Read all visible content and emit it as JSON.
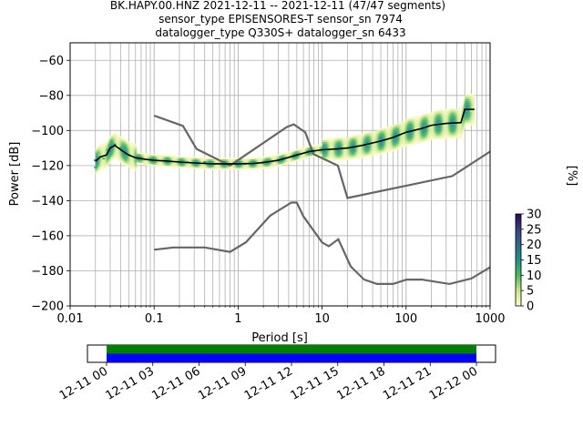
{
  "chart_data": [
    {
      "type": "heatmap",
      "title_lines": [
        "BK.HAPY.00.HNZ   2021-12-11 -- 2021-12-11  (47/47 segments)",
        "sensor_type EPISENSORES-T sensor_sn 7974",
        "datalogger_type Q330S+ datalogger_sn 6433"
      ],
      "xlabel": "Period [s]",
      "ylabel": "Power [dB]",
      "x_scale": "log",
      "xlim": [
        0.01,
        1000
      ],
      "ylim": [
        -200,
        -50
      ],
      "x_ticks": [
        {
          "v": 0.01,
          "label": "0.01"
        },
        {
          "v": 0.1,
          "label": "0.1"
        },
        {
          "v": 1,
          "label": "1"
        },
        {
          "v": 10,
          "label": "10"
        },
        {
          "v": 100,
          "label": "100"
        },
        {
          "v": 1000,
          "label": "1000"
        }
      ],
      "y_ticks": [
        {
          "v": -60,
          "label": "−60"
        },
        {
          "v": -80,
          "label": "−80"
        },
        {
          "v": -100,
          "label": "−100"
        },
        {
          "v": -120,
          "label": "−120"
        },
        {
          "v": -140,
          "label": "−140"
        },
        {
          "v": -160,
          "label": "−160"
        },
        {
          "v": -180,
          "label": "−180"
        },
        {
          "v": -200,
          "label": "−200"
        }
      ],
      "grid": true,
      "colorbar": {
        "label": "[%]",
        "min": 0,
        "max": 30,
        "ticks": [
          {
            "v": 0,
            "label": "0"
          },
          {
            "v": 5,
            "label": "5"
          },
          {
            "v": 10,
            "label": "10"
          },
          {
            "v": 15,
            "label": "15"
          },
          {
            "v": 20,
            "label": "20"
          },
          {
            "v": 25,
            "label": "25"
          },
          {
            "v": 30,
            "label": "30"
          }
        ]
      },
      "nhnm": [
        [
          0.1,
          -91.5
        ],
        [
          0.22,
          -97.4
        ],
        [
          0.32,
          -110.5
        ],
        [
          0.8,
          -120
        ],
        [
          3.8,
          -98
        ],
        [
          4.6,
          -96.5
        ],
        [
          6.3,
          -101
        ],
        [
          7.9,
          -113.5
        ],
        [
          15.4,
          -120
        ],
        [
          20,
          -138.5
        ],
        [
          354.8,
          -126
        ],
        [
          1000,
          -112
        ]
      ],
      "nlnm": [
        [
          0.1,
          -168
        ],
        [
          0.17,
          -166.7
        ],
        [
          0.4,
          -166.7
        ],
        [
          0.8,
          -169.2
        ],
        [
          1.24,
          -163.7
        ],
        [
          2.4,
          -148.6
        ],
        [
          4.3,
          -141.1
        ],
        [
          5,
          -141.1
        ],
        [
          6,
          -149
        ],
        [
          10,
          -163.8
        ],
        [
          12,
          -166
        ],
        [
          15.6,
          -162
        ],
        [
          21.9,
          -177.5
        ],
        [
          31.6,
          -185
        ],
        [
          45,
          -187.5
        ],
        [
          70,
          -187.5
        ],
        [
          101,
          -185
        ],
        [
          154,
          -185
        ],
        [
          328,
          -187.5
        ],
        [
          600,
          -184.4
        ],
        [
          1000,
          -178
        ]
      ],
      "mean": [
        [
          0.02,
          -117.5
        ],
        [
          0.023,
          -115
        ],
        [
          0.027,
          -114
        ],
        [
          0.03,
          -110
        ],
        [
          0.034,
          -108.5
        ],
        [
          0.04,
          -111
        ],
        [
          0.05,
          -114
        ],
        [
          0.06,
          -115.5
        ],
        [
          0.08,
          -116.5
        ],
        [
          0.1,
          -117
        ],
        [
          0.15,
          -117.5
        ],
        [
          0.2,
          -118
        ],
        [
          0.3,
          -118.5
        ],
        [
          0.5,
          -119
        ],
        [
          1,
          -119
        ],
        [
          1.5,
          -118.8
        ],
        [
          2,
          -118.3
        ],
        [
          3,
          -117
        ],
        [
          5,
          -114
        ],
        [
          7,
          -112
        ],
        [
          10,
          -111
        ],
        [
          15,
          -110.5
        ],
        [
          20,
          -110
        ],
        [
          30,
          -108.5
        ],
        [
          50,
          -106
        ],
        [
          70,
          -104
        ],
        [
          100,
          -101
        ],
        [
          150,
          -99
        ],
        [
          200,
          -97
        ],
        [
          300,
          -96
        ],
        [
          450,
          -95.5
        ],
        [
          500,
          -88
        ],
        [
          650,
          -88
        ]
      ],
      "histogram_cells": [
        {
          "period": 0.02,
          "db": -117,
          "pct": 20
        },
        {
          "period": 0.02,
          "db": -121,
          "pct": 12
        },
        {
          "period": 0.022,
          "db": -114,
          "pct": 8
        },
        {
          "period": 0.025,
          "db": -116,
          "pct": 10
        },
        {
          "period": 0.028,
          "db": -111,
          "pct": 12
        },
        {
          "period": 0.031,
          "db": -106,
          "pct": 10
        },
        {
          "period": 0.034,
          "db": -108,
          "pct": 18
        },
        {
          "period": 0.04,
          "db": -110,
          "pct": 14
        },
        {
          "period": 0.05,
          "db": -114,
          "pct": 12
        },
        {
          "period": 0.07,
          "db": -116,
          "pct": 10
        },
        {
          "period": 0.1,
          "db": -117,
          "pct": 9
        },
        {
          "period": 0.15,
          "db": -117,
          "pct": 10
        },
        {
          "period": 0.25,
          "db": -118,
          "pct": 12
        },
        {
          "period": 0.4,
          "db": -118,
          "pct": 14
        },
        {
          "period": 0.7,
          "db": -119,
          "pct": 15
        },
        {
          "period": 1.2,
          "db": -119,
          "pct": 14
        },
        {
          "period": 2,
          "db": -118,
          "pct": 13
        },
        {
          "period": 3,
          "db": -117,
          "pct": 12
        },
        {
          "period": 5,
          "db": -114,
          "pct": 10
        },
        {
          "period": 8,
          "db": -112,
          "pct": 10
        },
        {
          "period": 12,
          "db": -111,
          "pct": 9
        },
        {
          "period": 20,
          "db": -110,
          "pct": 8
        },
        {
          "period": 35,
          "db": -108,
          "pct": 7
        },
        {
          "period": 60,
          "db": -105,
          "pct": 7
        },
        {
          "period": 100,
          "db": -101,
          "pct": 6
        },
        {
          "period": 170,
          "db": -98,
          "pct": 6
        },
        {
          "period": 300,
          "db": -96,
          "pct": 5
        },
        {
          "period": 600,
          "db": -89,
          "pct": 5
        }
      ]
    },
    {
      "type": "bar",
      "title": "",
      "x_tick_labels": [
        "12-11 00",
        "12-11 03",
        "12-11 06",
        "12-11 09",
        "12-11 12",
        "12-11 15",
        "12-11 18",
        "12-11 21",
        "12-12 00"
      ],
      "rows": [
        {
          "color": "#008000",
          "start": "12-11 00",
          "end": "12-12 00"
        },
        {
          "color": "#0000ff",
          "start": "12-11 00",
          "end": "12-12 00"
        }
      ]
    }
  ]
}
